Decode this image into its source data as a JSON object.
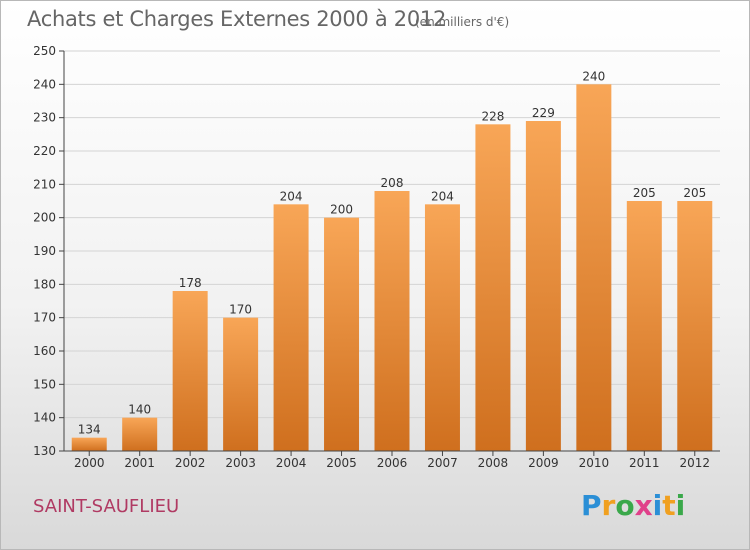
{
  "title": "Achats et Charges Externes 2000 à 2012",
  "subtitle": "(en milliers d'€)",
  "commune": "SAINT-SAUFLIEU",
  "logo": {
    "letters": [
      "P",
      "r",
      "o",
      "x",
      "i",
      "t",
      "i"
    ],
    "colors": [
      "#2b8fd6",
      "#f0a020",
      "#3aa84a",
      "#e0408a",
      "#2b8fd6",
      "#f0a020",
      "#3aa84a"
    ]
  },
  "colors": {
    "bar_top": "#f8a657",
    "bar_bottom": "#cf6f1e",
    "title": "#666666",
    "commune": "#b03a63"
  },
  "chart_data": {
    "type": "bar",
    "title": "Achats et Charges Externes 2000 à 2012",
    "subtitle": "(en milliers d'€)",
    "categories": [
      "2000",
      "2001",
      "2002",
      "2003",
      "2004",
      "2005",
      "2006",
      "2007",
      "2008",
      "2009",
      "2010",
      "2011",
      "2012"
    ],
    "values": [
      134,
      140,
      178,
      170,
      204,
      200,
      208,
      204,
      228,
      229,
      240,
      205,
      205
    ],
    "ylim": [
      130,
      250
    ],
    "yticks": [
      130,
      140,
      150,
      160,
      170,
      180,
      190,
      200,
      210,
      220,
      230,
      240,
      250
    ],
    "grid": true,
    "legend": "none"
  }
}
